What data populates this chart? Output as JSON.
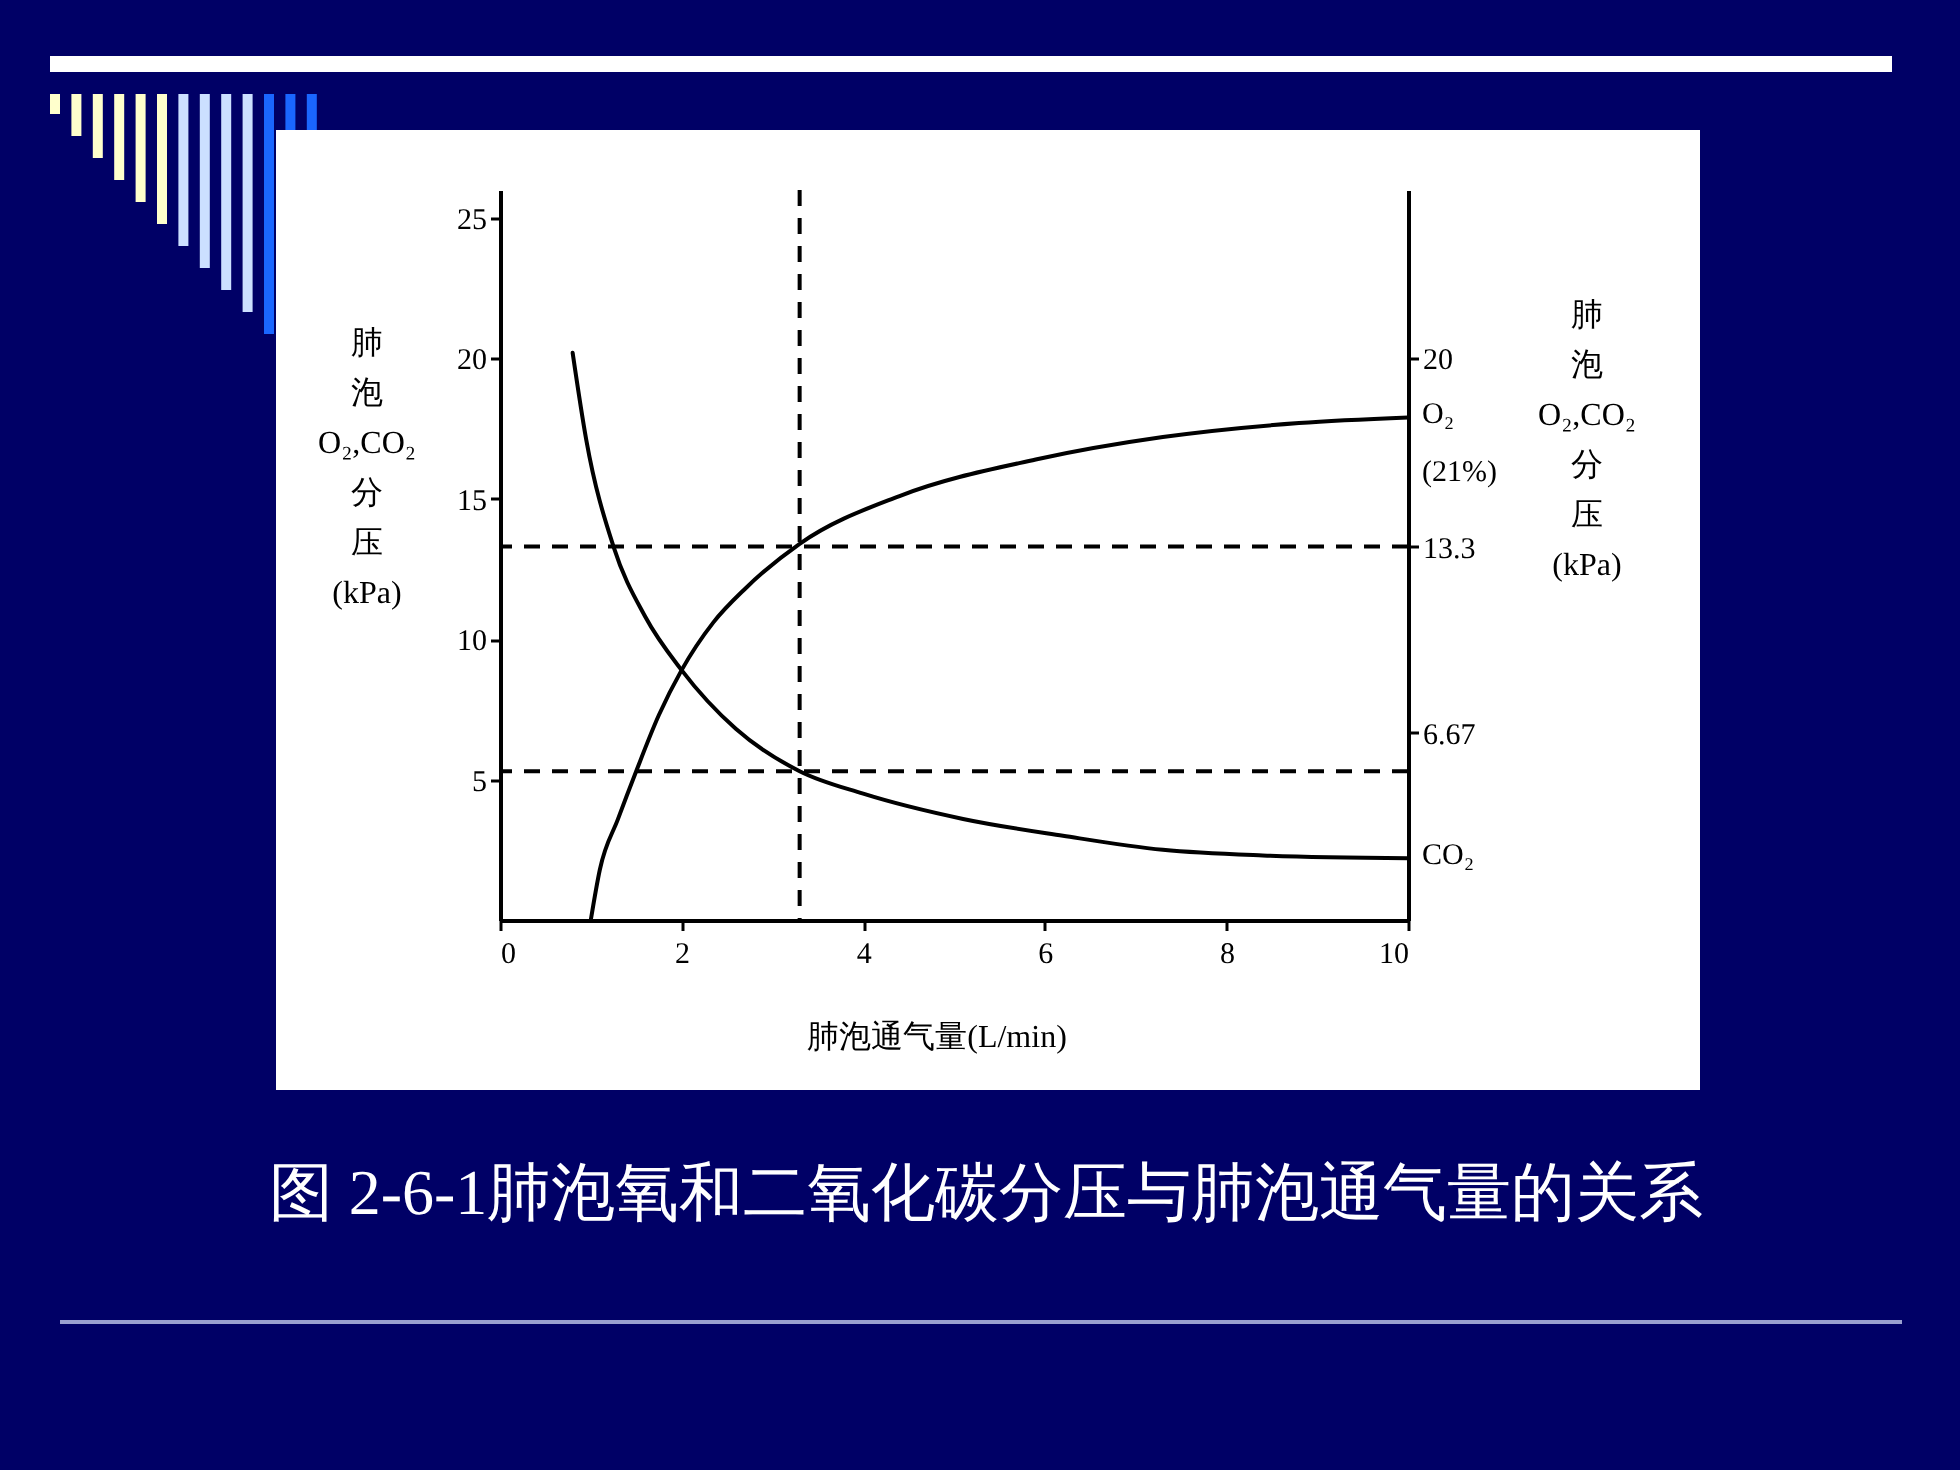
{
  "chart_data": {
    "type": "line",
    "title": "图 2-6-1肺泡氧和二氧化碳分压与肺泡通气量的关系",
    "xlabel": "肺泡通气量(L/min)",
    "ylabel": "肺泡O₂,CO₂分压(kPa)",
    "y2label": "肺泡O₂,CO₂分压(kPa)",
    "xlim": [
      0,
      10
    ],
    "xticks": [
      0,
      2,
      4,
      6,
      8,
      10
    ],
    "ylim": [
      0,
      26
    ],
    "yticks": [
      5,
      10,
      15,
      20,
      25
    ],
    "y2lim": [
      0,
      26
    ],
    "y2ticks": [
      6.67,
      13.3,
      20
    ],
    "series": [
      {
        "name": "O₂ (21%)",
        "color": "#000000",
        "x": [
          1.0,
          1.1,
          1.3,
          1.5,
          1.75,
          2.0,
          2.35,
          2.7,
          3.3,
          4.4,
          5.9,
          7.3,
          8.8,
          10
        ],
        "values": [
          0,
          1.8,
          3.6,
          5.3,
          7.3,
          8.9,
          10.6,
          11.8,
          13.4,
          15.1,
          16.4,
          17.2,
          17.7,
          17.9
        ]
      },
      {
        "name": "CO₂",
        "color": "#000000",
        "x": [
          0.8,
          0.95,
          1.25,
          1.6,
          2.0,
          2.6,
          3.3,
          4.0,
          5.1,
          6.2,
          7.3,
          8.4,
          10
        ],
        "values": [
          20.2,
          17.1,
          13.3,
          10.8,
          8.9,
          6.8,
          5.3,
          4.5,
          3.6,
          3.0,
          2.5,
          2.3,
          2.2
        ]
      }
    ],
    "ref_lines": [
      {
        "axis": "x",
        "value": 3.3,
        "line_style": "dashed",
        "color": "#000000"
      },
      {
        "axis": "y",
        "value": 13.3,
        "line_style": "dashed",
        "color": "#000000"
      },
      {
        "axis": "y",
        "value": 5.3,
        "line_style": "dashed",
        "color": "#000000"
      }
    ]
  }
}
